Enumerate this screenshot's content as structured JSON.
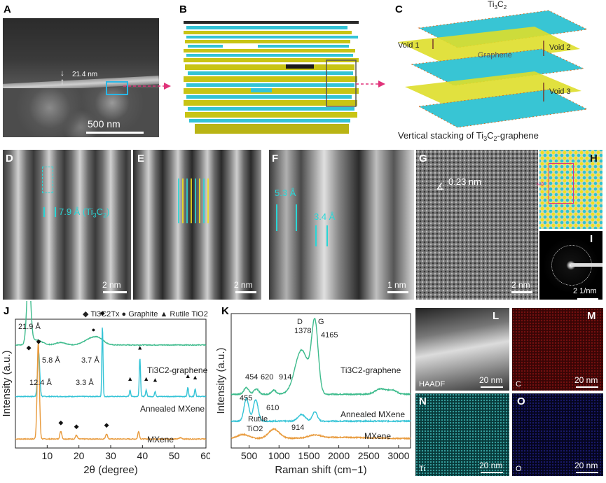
{
  "panels": {
    "A": {
      "label": "A",
      "thickness": "21.4 nm",
      "scalebar": "500 nm"
    },
    "B": {
      "label": "B"
    },
    "C": {
      "label": "C",
      "top_label": "Ti3C2",
      "void1": "Void 1",
      "void2": "Void 2",
      "void3": "Void 3",
      "graphene": "Graphene",
      "caption": "Vertical stacking of Ti3C2-graphene"
    },
    "D": {
      "label": "D",
      "spacing": "7.9 Å (Ti3C2)",
      "scalebar": "2 nm"
    },
    "E": {
      "label": "E",
      "scalebar": "2 nm"
    },
    "F": {
      "label": "F",
      "spacing1": "5.3 Å",
      "spacing2": "3.4 Å",
      "scalebar": "1 nm"
    },
    "G": {
      "label": "G",
      "lattice": "0.23 nm",
      "scalebar": "2 nm"
    },
    "H": {
      "label": "H"
    },
    "I": {
      "label": "I",
      "scalebar": "2 1/nm"
    },
    "J": {
      "label": "J"
    },
    "K": {
      "label": "K"
    },
    "L": {
      "label": "L",
      "tag": "HAADF",
      "scalebar": "20 nm"
    },
    "M": {
      "label": "M",
      "tag": "C",
      "scalebar": "20 nm"
    },
    "N": {
      "label": "N",
      "tag": "Ti",
      "scalebar": "20 nm"
    },
    "O": {
      "label": "O",
      "tag": "O",
      "scalebar": "20 nm"
    }
  },
  "chart_data": [
    {
      "type": "line",
      "id": "J",
      "xlabel": "2θ (degree)",
      "ylabel": "Intensity (a.u.)",
      "xlim": [
        0,
        60
      ],
      "xticks": [
        10,
        20,
        30,
        40,
        50,
        60
      ],
      "legend": [
        "Ti3C2Tx",
        "Graphite",
        "Rutile TiO2"
      ],
      "series": [
        {
          "name": "Ti3C2-graphene",
          "color": "#3dbb8c",
          "baseline": 0.2,
          "peaks": [
            [
              4.2,
              0.55,
              0.6
            ],
            [
              6.5,
              0.04,
              1.8
            ],
            [
              14.3,
              0.02,
              1.5
            ],
            [
              24.0,
              0.05,
              2.2
            ],
            [
              26.5,
              0.03,
              1.6
            ]
          ]
        },
        {
          "name": "Annealed MXene",
          "color": "#33c3d6",
          "baseline": 0.6,
          "peaks": [
            [
              7.3,
              0.35,
              0.35
            ],
            [
              27.4,
              0.55,
              0.18
            ],
            [
              36.1,
              0.05,
              0.2
            ],
            [
              39.2,
              0.3,
              0.2
            ],
            [
              41.2,
              0.05,
              0.2
            ],
            [
              44.0,
              0.04,
              0.2
            ],
            [
              54.3,
              0.07,
              0.2
            ],
            [
              56.6,
              0.06,
              0.2
            ]
          ]
        },
        {
          "name": "MXene",
          "color": "#e89a3c",
          "baseline": 0.93,
          "peaks": [
            [
              7.2,
              0.75,
              0.35
            ],
            [
              14.3,
              0.06,
              0.3
            ],
            [
              19.2,
              0.03,
              0.3
            ],
            [
              28.7,
              0.04,
              0.3
            ],
            [
              38.8,
              0.06,
              0.25
            ],
            [
              52.0,
              0.01,
              0.4
            ]
          ]
        }
      ],
      "annotations": {
        "a1": "21.9 Å",
        "a2": "12.4 Å",
        "a3": "5.8 Å",
        "a4": "3.7 Å",
        "a5": "3.3 Å"
      },
      "series_labels": {
        "s1": "Ti3C2-graphene",
        "s2": "Annealed MXene",
        "s3": "MXene"
      }
    },
    {
      "type": "line",
      "id": "K",
      "xlabel": "Raman shift (cm−1)",
      "ylabel": "Intensity (a.u.)",
      "xlim": [
        200,
        3200
      ],
      "xticks": [
        500,
        1000,
        1500,
        2000,
        2500,
        3000
      ],
      "series": [
        {
          "name": "Ti3C2-graphene",
          "color": "#3dbb8c",
          "baseline": 0.6,
          "peaks": [
            [
              454,
              0.05,
              40
            ],
            [
              620,
              0.04,
              40
            ],
            [
              914,
              0.03,
              40
            ],
            [
              1378,
              0.33,
              110
            ],
            [
              1600,
              0.52,
              55
            ],
            [
              2700,
              0.04,
              90
            ],
            [
              2900,
              0.03,
              70
            ]
          ]
        },
        {
          "name": "Annealed MXene",
          "color": "#33c3d6",
          "baseline": 0.8,
          "peaks": [
            [
              455,
              0.17,
              40
            ],
            [
              610,
              0.16,
              40
            ],
            [
              1378,
              0.05,
              60
            ],
            [
              1600,
              0.07,
              40
            ]
          ]
        },
        {
          "name": "MXene",
          "color": "#e89a3c",
          "baseline": 0.93,
          "peaks": [
            [
              400,
              0.03,
              100
            ],
            [
              914,
              0.07,
              90
            ],
            [
              1600,
              0.02,
              100
            ],
            [
              2000,
              0.01,
              500
            ]
          ]
        }
      ],
      "annotations": {
        "D": "D",
        "G": "G",
        "p1378": "1378",
        "p4165": "4165",
        "p454": "454",
        "p620": "620",
        "p914a": "914",
        "p455": "455",
        "p610": "610",
        "rutile1": "Rutile",
        "rutile2": "TiO2",
        "p914b": "914"
      },
      "series_labels": {
        "s1": "Ti3C2-graphene",
        "s2": "Annealed MXene",
        "s3": "MXene"
      }
    }
  ]
}
